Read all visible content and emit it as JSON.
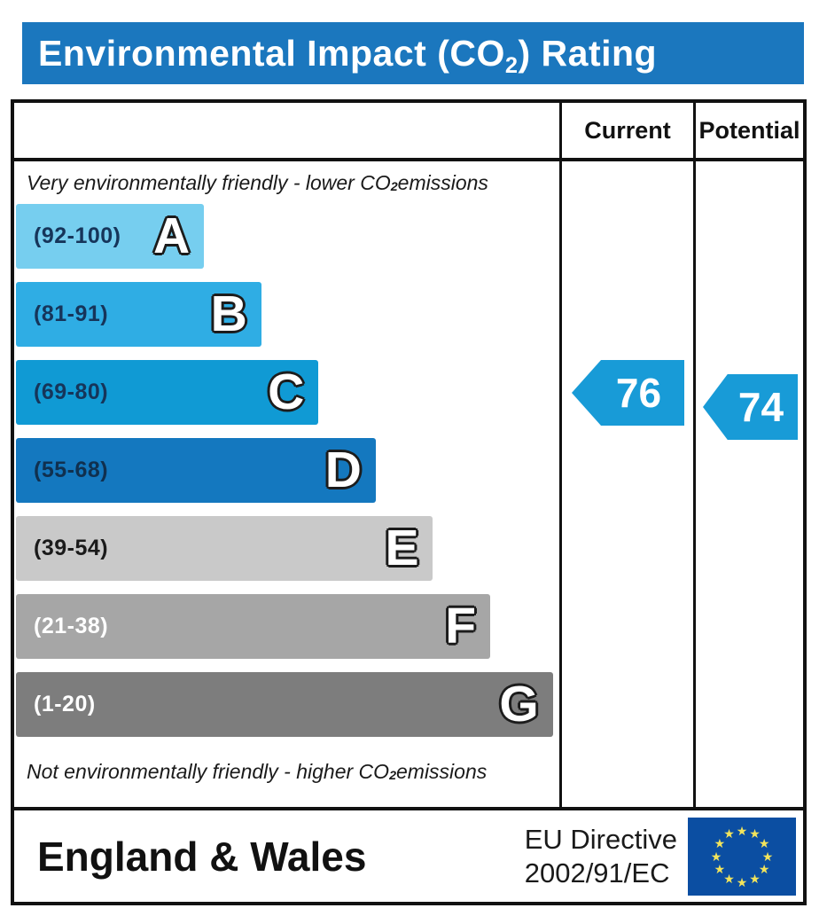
{
  "title": {
    "text_main": "Environmental Impact (CO",
    "text_sub": "2",
    "text_end": ") Rating"
  },
  "header": {
    "current_label": "Current",
    "potential_label": "Potential"
  },
  "notes": {
    "top": {
      "main": "Very environmentally friendly - lower CO",
      "sub": "2",
      "end": " emissions"
    },
    "bottom": {
      "main": "Not environmentally friendly - higher CO",
      "sub": "2",
      "end": " emissions"
    }
  },
  "bands": [
    {
      "letter": "A",
      "range": "(92-100)",
      "color": "#76CEEF",
      "label_color": "#16355A",
      "width_pct": 34.5
    },
    {
      "letter": "B",
      "range": "(81-91)",
      "color": "#2FADE4",
      "label_color": "#16355A",
      "width_pct": 45
    },
    {
      "letter": "C",
      "range": "(69-80)",
      "color": "#109AD4",
      "label_color": "#16355A",
      "width_pct": 55.5
    },
    {
      "letter": "D",
      "range": "(55-68)",
      "color": "#1478BF",
      "label_color": "#10304F",
      "width_pct": 66
    },
    {
      "letter": "E",
      "range": "(39-54)",
      "color": "#C9C9C9",
      "label_color": "#1A1A1A",
      "width_pct": 76.5
    },
    {
      "letter": "F",
      "range": "(21-38)",
      "color": "#A6A6A6",
      "label_color": "#FFFFFF",
      "width_pct": 87
    },
    {
      "letter": "G",
      "range": "(1-20)",
      "color": "#7D7D7D",
      "label_color": "#FFFFFF",
      "width_pct": 98.5
    }
  ],
  "ratings": {
    "current": {
      "value": "76",
      "arrow_color": "#189BD7"
    },
    "potential": {
      "value": "74",
      "arrow_color": "#189BD7"
    }
  },
  "footer": {
    "region": "England & Wales",
    "directive_line1": "EU Directive",
    "directive_line2": "2002/91/EC"
  },
  "flag": {
    "bg": "#0B4EA2",
    "star_color": "#F2E45C",
    "star_glyph": "★",
    "star_count": 12
  },
  "colors": {
    "banner_bg": "#1B77BE",
    "border": "#111111"
  },
  "chart_data": {
    "type": "bar",
    "title": "Environmental Impact (CO2) Rating",
    "categories": [
      "A",
      "B",
      "C",
      "D",
      "E",
      "F",
      "G"
    ],
    "band_ranges": [
      "92-100",
      "81-91",
      "69-80",
      "55-68",
      "39-54",
      "21-38",
      "1-20"
    ],
    "band_widths_pct": [
      34.5,
      45,
      55.5,
      66,
      76.5,
      87,
      98.5
    ],
    "band_colors": [
      "#76CEEF",
      "#2FADE4",
      "#109AD4",
      "#1478BF",
      "#C9C9C9",
      "#A6A6A6",
      "#7D7D7D"
    ],
    "columns": [
      "Current",
      "Potential"
    ],
    "current_rating": 76,
    "potential_rating": 74,
    "current_band": "C",
    "potential_band": "C",
    "top_annotation": "Very environmentally friendly - lower CO2 emissions",
    "bottom_annotation": "Not environmentally friendly - higher CO2 emissions",
    "footer_left": "England & Wales",
    "footer_right": "EU Directive 2002/91/EC",
    "legend_position": "none",
    "grid": false
  }
}
